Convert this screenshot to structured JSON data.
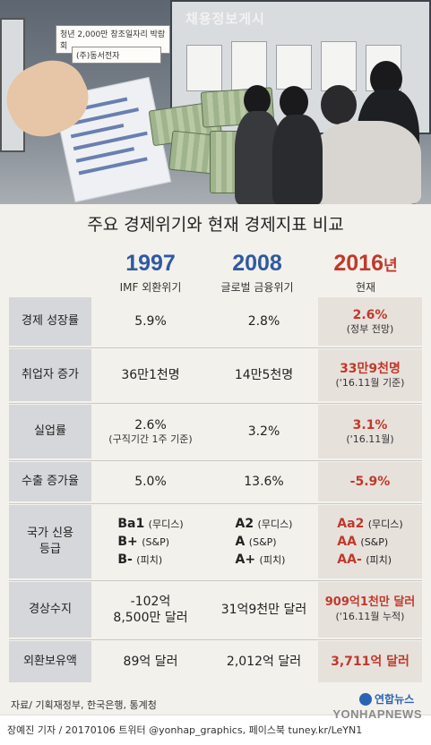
{
  "photo": {
    "board_title": "채용정보게시",
    "notices": [
      "청년 2,000만 창조일자리 박람회",
      "(주)동서전자"
    ]
  },
  "chart_data": {
    "type": "table",
    "title": "주요 경제위기와 현재 경제지표 비교",
    "columns": [
      {
        "year": "1997",
        "suffix": "",
        "label": "IMF 외환위기"
      },
      {
        "year": "2008",
        "suffix": "",
        "label": "글로벌 금융위기"
      },
      {
        "year": "2016",
        "suffix": "년",
        "label": "현재"
      }
    ],
    "rows": [
      {
        "label": "경제 성장률",
        "cells": [
          {
            "main": "5.9%",
            "note": ""
          },
          {
            "main": "2.8%",
            "note": ""
          },
          {
            "main": "2.6%",
            "note": "(정부 전망)"
          }
        ]
      },
      {
        "label": "취업자 증가",
        "cells": [
          {
            "main": "36만1천명",
            "note": ""
          },
          {
            "main": "14만5천명",
            "note": ""
          },
          {
            "main": "33만9천명",
            "note": "('16.11월 기준)"
          }
        ]
      },
      {
        "label": "실업률",
        "cells": [
          {
            "main": "2.6%",
            "note": "(구직기간 1주 기준)"
          },
          {
            "main": "3.2%",
            "note": ""
          },
          {
            "main": "3.1%",
            "note": "('16.11월)"
          }
        ]
      },
      {
        "label": "수출 증가율",
        "cells": [
          {
            "main": "5.0%",
            "note": ""
          },
          {
            "main": "13.6%",
            "note": ""
          },
          {
            "main": "-5.9%",
            "note": ""
          }
        ]
      },
      {
        "label": "국가 신용등급",
        "grades": [
          [
            {
              "g": "Ba1",
              "a": "(무디스)"
            },
            {
              "g": "B+",
              "a": "(S&P)"
            },
            {
              "g": "B-",
              "a": "(피치)"
            }
          ],
          [
            {
              "g": "A2",
              "a": "(무디스)"
            },
            {
              "g": "A",
              "a": "(S&P)"
            },
            {
              "g": "A+",
              "a": "(피치)"
            }
          ],
          [
            {
              "g": "Aa2",
              "a": "(무디스)"
            },
            {
              "g": "AA",
              "a": "(S&P)"
            },
            {
              "g": "AA-",
              "a": "(피치)"
            }
          ]
        ]
      },
      {
        "label": "경상수지",
        "cells": [
          {
            "main": "-102억",
            "main2": "8,500만 달러",
            "note": ""
          },
          {
            "main": "31억9천만 달러",
            "note": ""
          },
          {
            "main": "909억1천만 달러",
            "note": "('16.11월 누적)"
          }
        ]
      },
      {
        "label": "외환보유액",
        "cells": [
          {
            "main": "89억 달러",
            "note": ""
          },
          {
            "main": "2,012억 달러",
            "note": ""
          },
          {
            "main": "3,711억 달러",
            "note": ""
          }
        ]
      }
    ]
  },
  "source": "자료/ 기획재정부, 한국은행, 통계청",
  "logo_text": "연합뉴스",
  "credit": "장예진 기자 / 20170106 트위터 @yonhap_graphics, 페이스북 tuney.kr/LeYN1",
  "watermark": "YONHAPNEWS",
  "colors": {
    "blue": "#2f5aa0",
    "red": "#c0392b",
    "label_bg": "#d6d7da",
    "highlight_bg": "#e7e1dc"
  }
}
